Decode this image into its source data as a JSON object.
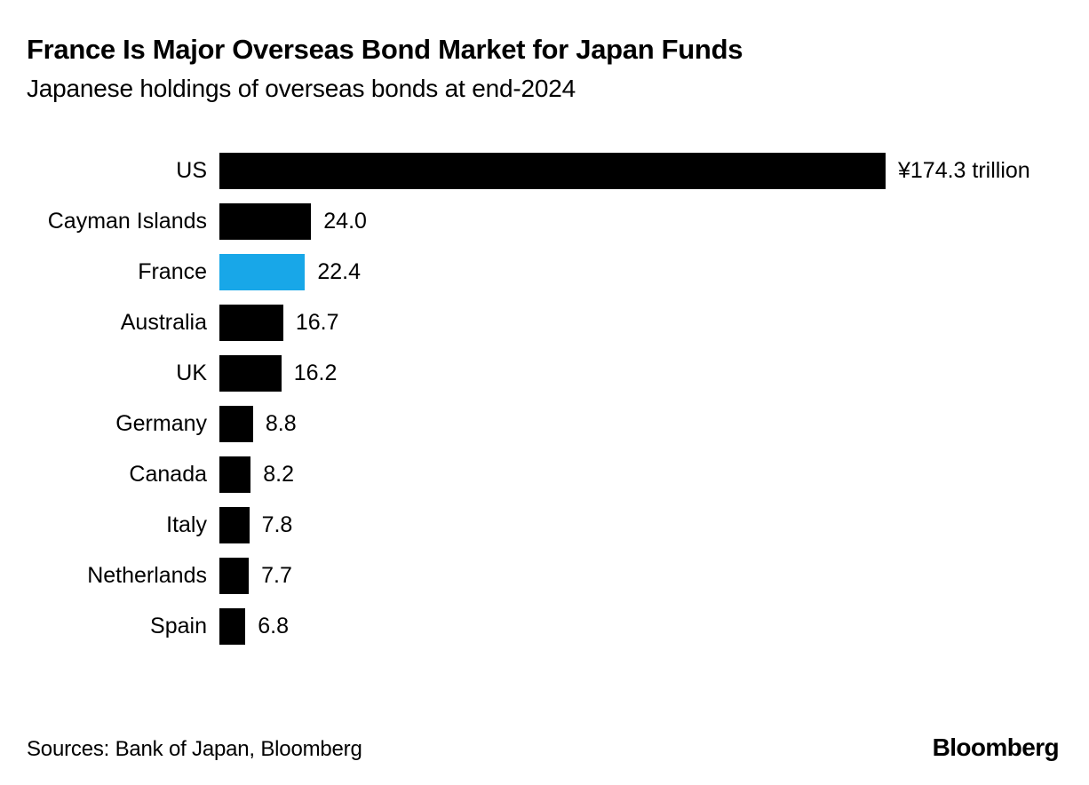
{
  "header": {
    "title": "France Is Major Overseas Bond Market for Japan Funds",
    "subtitle": "Japanese holdings of overseas bonds at end-2024"
  },
  "chart_data": {
    "type": "bar",
    "orientation": "horizontal",
    "title": "France Is Major Overseas Bond Market for Japan Funds",
    "subtitle": "Japanese holdings of overseas bonds at end-2024",
    "unit": "yen trillion",
    "categories": [
      "US",
      "Cayman Islands",
      "France",
      "Australia",
      "UK",
      "Germany",
      "Canada",
      "Italy",
      "Netherlands",
      "Spain"
    ],
    "values": [
      174.3,
      24.0,
      22.4,
      16.7,
      16.2,
      8.8,
      8.2,
      7.8,
      7.7,
      6.8
    ],
    "value_labels": [
      "¥174.3 trillion",
      "24.0",
      "22.4",
      "16.7",
      "16.2",
      "8.8",
      "8.2",
      "7.8",
      "7.7",
      "6.8"
    ],
    "highlight_category": "France",
    "xlim": [
      0,
      174.3
    ],
    "grid": false,
    "legend": "none",
    "colors": {
      "bar": "#000000",
      "highlight": "#18a7e8"
    }
  },
  "footer": {
    "sources": "Sources: Bank of Japan, Bloomberg",
    "logo": "Bloomberg"
  }
}
